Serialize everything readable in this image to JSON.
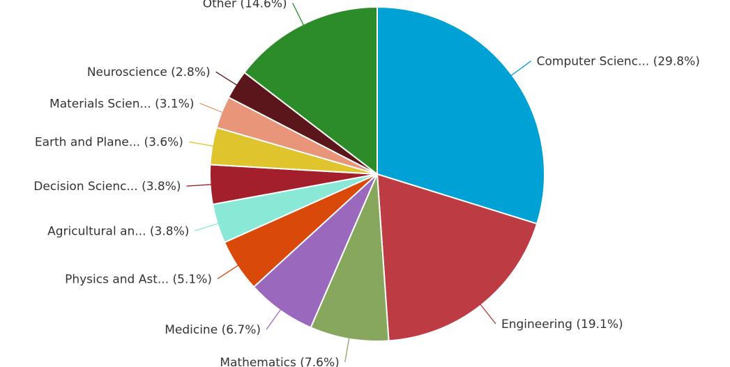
{
  "chart_data": {
    "type": "pie",
    "start_angle_deg": 0,
    "direction": "clockwise",
    "slices": [
      {
        "name": "Computer Science",
        "value": 29.8,
        "label": "Computer Scienc... (29.8%)",
        "color": "#00a1d4",
        "label_side": "right"
      },
      {
        "name": "Engineering",
        "value": 19.1,
        "label": "Engineering (19.1%)",
        "color": "#bd3c44",
        "label_side": "right"
      },
      {
        "name": "Mathematics",
        "value": 7.6,
        "label": "Mathematics (7.6%)",
        "color": "#87a75c",
        "label_side": "left"
      },
      {
        "name": "Medicine",
        "value": 6.7,
        "label": "Medicine (6.7%)",
        "color": "#9a69bd",
        "label_side": "left"
      },
      {
        "name": "Physics and Astronomy",
        "value": 5.1,
        "label": "Physics and Ast... (5.1%)",
        "color": "#d9490a",
        "label_side": "left"
      },
      {
        "name": "Agricultural and Biological Sciences",
        "value": 3.8,
        "label": "Agricultural an... (3.8%)",
        "color": "#8ae8d6",
        "label_side": "left"
      },
      {
        "name": "Decision Sciences",
        "value": 3.8,
        "label": "Decision Scienc... (3.8%)",
        "color": "#a31f2c",
        "label_side": "left"
      },
      {
        "name": "Earth and Planetary Sciences",
        "value": 3.6,
        "label": "Earth and Plane... (3.6%)",
        "color": "#e0c42d",
        "label_side": "left"
      },
      {
        "name": "Materials Science",
        "value": 3.1,
        "label": "Materials Scien... (3.1%)",
        "color": "#e8957a",
        "label_side": "left"
      },
      {
        "name": "Neuroscience",
        "value": 2.8,
        "label": "Neuroscience (2.8%)",
        "color": "#5a161a",
        "label_side": "left"
      },
      {
        "name": "Other",
        "value": 14.6,
        "label": "Other (14.6%)",
        "color": "#2c8c2a",
        "label_side": "left"
      }
    ]
  }
}
